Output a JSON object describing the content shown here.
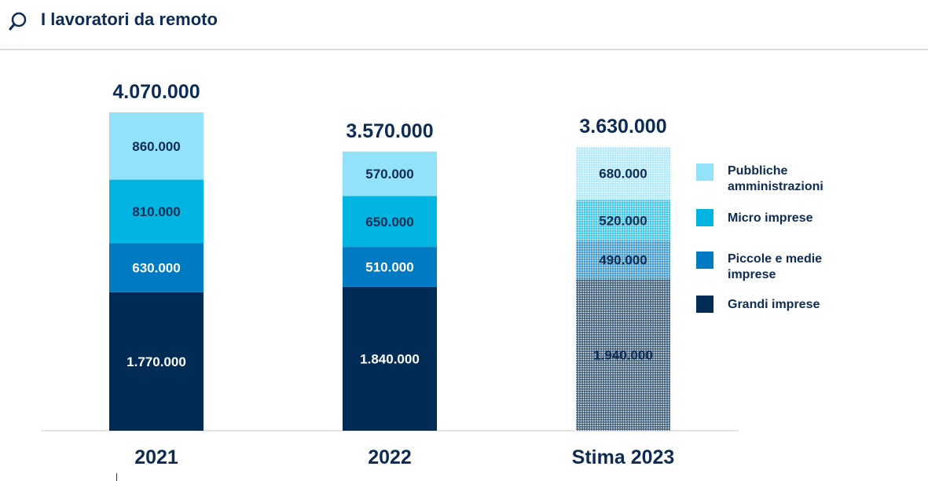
{
  "header": {
    "title": "I lavoratori da remoto",
    "icon": "magnifier-icon"
  },
  "colors": {
    "pubbliche": "#92e2f9",
    "micro": "#00b5e2",
    "piccole": "#007ac2",
    "grandi": "#002b55",
    "text_dark": "#0d2b53"
  },
  "chart_data": {
    "type": "bar",
    "stacked": true,
    "categories": [
      "2021",
      "2022",
      "Stima 2023"
    ],
    "totals": [
      "4.070.000",
      "3.570.000",
      "3.630.000"
    ],
    "series": [
      {
        "name": "Grandi imprese",
        "key": "grandi",
        "values": [
          1770000,
          1840000,
          1940000
        ],
        "labels": [
          "1.770.000",
          "1.840.000",
          "1.940.000"
        ]
      },
      {
        "name": "Piccole e medie imprese",
        "key": "piccole",
        "values": [
          630000,
          510000,
          490000
        ],
        "labels": [
          "630.000",
          "510.000",
          "490.000"
        ]
      },
      {
        "name": "Micro imprese",
        "key": "micro",
        "values": [
          810000,
          650000,
          520000
        ],
        "labels": [
          "810.000",
          "650.000",
          "520.000"
        ]
      },
      {
        "name": "Pubbliche amministrazioni",
        "key": "pubbliche",
        "values": [
          860000,
          570000,
          680000
        ],
        "labels": [
          "860.000",
          "570.000",
          "680.000"
        ]
      }
    ],
    "estimated_category": "Stima 2023",
    "legend": [
      {
        "label_lines": [
          "Pubbliche",
          "amministrazioni"
        ],
        "key": "pubbliche"
      },
      {
        "label_lines": [
          "Micro imprese"
        ],
        "key": "micro"
      },
      {
        "label_lines": [
          "Piccole e medie",
          "imprese"
        ],
        "key": "piccole"
      },
      {
        "label_lines": [
          "Grandi imprese"
        ],
        "key": "grandi"
      }
    ]
  }
}
